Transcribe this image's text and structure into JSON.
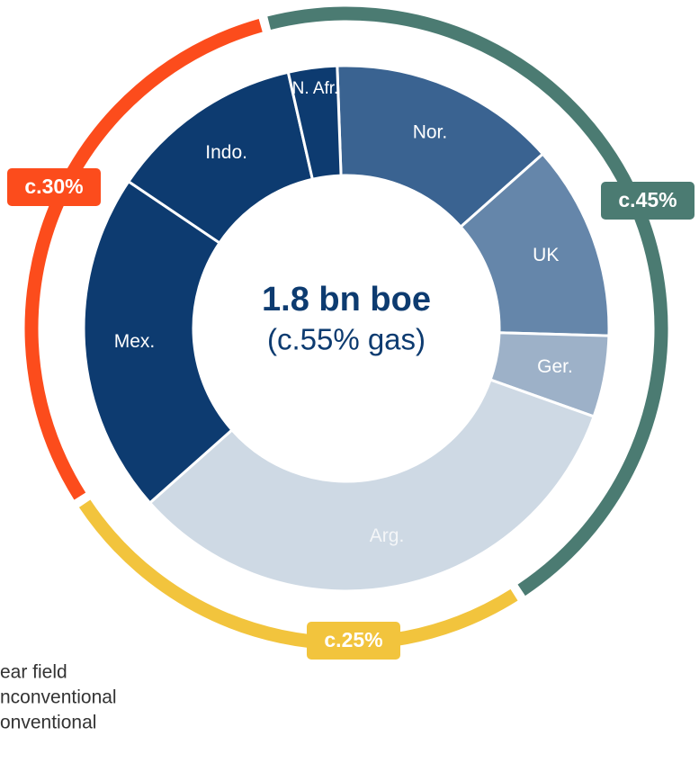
{
  "chart_data": {
    "type": "donut",
    "center_title": "1.8 bn boe",
    "center_subtitle": "(c.55% gas)",
    "categories": [
      "Nor.",
      "UK",
      "Ger.",
      "Arg.",
      "Mex.",
      "Indo.",
      "N. Afr."
    ],
    "values": [
      14,
      12,
      5,
      33,
      21,
      12,
      3
    ],
    "colors": [
      "#3a6391",
      "#6586aa",
      "#9db1c8",
      "#ced9e4",
      "#0d3b70",
      "#0d3b70",
      "#0d3b70"
    ],
    "outer_ring": {
      "series": [
        {
          "name": "onventional",
          "color": "#4b7b72",
          "values": [
            45
          ],
          "value_labels": [
            "c.45%"
          ]
        },
        {
          "name": "nconventional",
          "color": "#f2c43d",
          "values": [
            25
          ],
          "value_labels": [
            "c.25%"
          ]
        },
        {
          "name": "ear field",
          "color": "#fc4c1c",
          "values": [
            30
          ],
          "value_labels": [
            "c.30%"
          ]
        }
      ]
    }
  }
}
